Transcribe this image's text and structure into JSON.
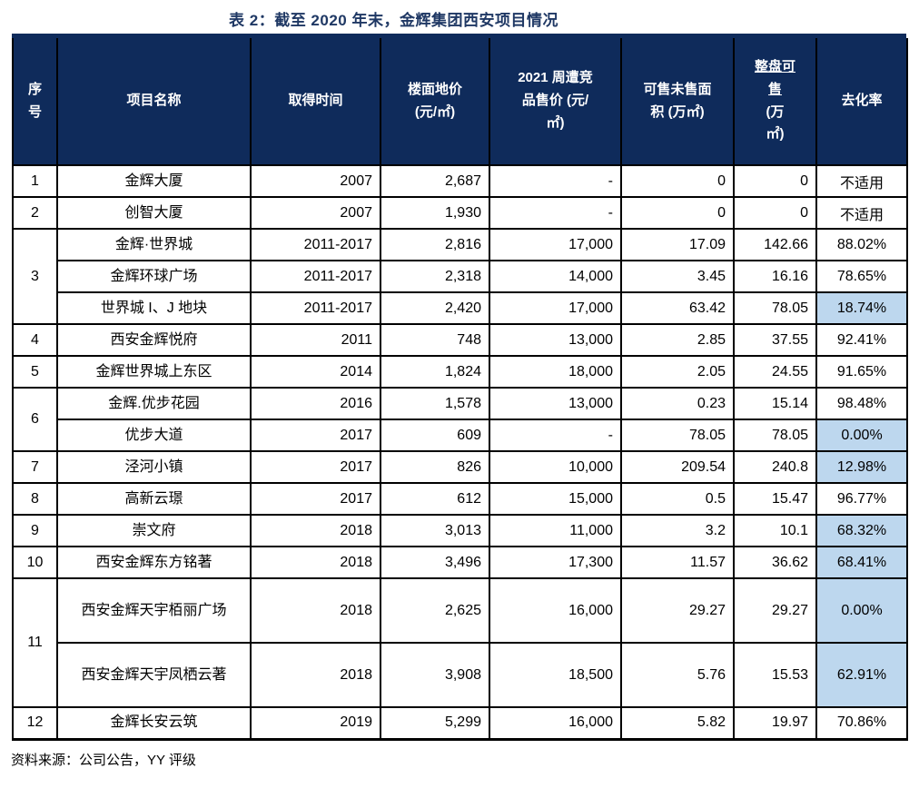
{
  "title": "表 2：截至 2020 年末，金辉集团西安项目情况",
  "source_note": "资料来源：公司公告，YY 评级",
  "colors": {
    "header_bg": "#0f2b5b",
    "title_color": "#1f3864",
    "highlight": "#bdd7ee",
    "rule": "#0f2b5b",
    "border": "#000000"
  },
  "header": {
    "seq": "序\n号",
    "name": "项目名称",
    "time": "取得时间",
    "floor_price": "楼面地价\n(元/㎡)",
    "comp_price": "2021 周遭竞\n品售价 (元/\n㎡)",
    "unsold_area": "可售未售面\n积 (万㎡)",
    "total_salable_underlined": "整盘可\n售",
    "total_salable_rest": "(万\n㎡)",
    "rate": "去化率"
  },
  "rows": [
    {
      "no": "1",
      "name": "金辉大厦",
      "time": "2007",
      "floor_price": "2,687",
      "comp_price": "-",
      "unsold_area": "0",
      "total_salable": "0",
      "rate": "不适用"
    },
    {
      "no": "2",
      "name": "创智大厦",
      "time": "2007",
      "floor_price": "1,930",
      "comp_price": "-",
      "unsold_area": "0",
      "total_salable": "0",
      "rate": "不适用"
    },
    {
      "no": "3",
      "name": "金辉·世界城",
      "time": "2011-2017",
      "floor_price": "2,816",
      "comp_price": "17,000",
      "unsold_area": "17.09",
      "total_salable": "142.66",
      "rate": "88.02%"
    },
    {
      "name": "金辉环球广场",
      "time": "2011-2017",
      "floor_price": "2,318",
      "comp_price": "14,000",
      "unsold_area": "3.45",
      "total_salable": "16.16",
      "rate": "78.65%"
    },
    {
      "name": "世界城 I、J 地块",
      "time": "2011-2017",
      "floor_price": "2,420",
      "comp_price": "17,000",
      "unsold_area": "63.42",
      "total_salable": "78.05",
      "rate": "18.74%",
      "highlight": true
    },
    {
      "no": "4",
      "name": "西安金辉悦府",
      "time": "2011",
      "floor_price": "748",
      "comp_price": "13,000",
      "unsold_area": "2.85",
      "total_salable": "37.55",
      "rate": "92.41%"
    },
    {
      "no": "5",
      "name": "金辉世界城上东区",
      "time": "2014",
      "floor_price": "1,824",
      "comp_price": "18,000",
      "unsold_area": "2.05",
      "total_salable": "24.55",
      "rate": "91.65%"
    },
    {
      "no": "6",
      "name": "金辉.优步花园",
      "time": "2016",
      "floor_price": "1,578",
      "comp_price": "13,000",
      "unsold_area": "0.23",
      "total_salable": "15.14",
      "rate": "98.48%"
    },
    {
      "name": "优步大道",
      "time": "2017",
      "floor_price": "609",
      "comp_price": "-",
      "unsold_area": "78.05",
      "total_salable": "78.05",
      "rate": "0.00%",
      "highlight": true
    },
    {
      "no": "7",
      "name": "泾河小镇",
      "time": "2017",
      "floor_price": "826",
      "comp_price": "10,000",
      "unsold_area": "209.54",
      "total_salable": "240.8",
      "rate": "12.98%",
      "highlight": true
    },
    {
      "no": "8",
      "name": "高新云璟",
      "time": "2017",
      "floor_price": "612",
      "comp_price": "15,000",
      "unsold_area": "0.5",
      "total_salable": "15.47",
      "rate": "96.77%"
    },
    {
      "no": "9",
      "name": "崇文府",
      "time": "2018",
      "floor_price": "3,013",
      "comp_price": "11,000",
      "unsold_area": "3.2",
      "total_salable": "10.1",
      "rate": "68.32%",
      "highlight": true
    },
    {
      "no": "10",
      "name": "西安金辉东方铭著",
      "time": "2018",
      "floor_price": "3,496",
      "comp_price": "17,300",
      "unsold_area": "11.57",
      "total_salable": "36.62",
      "rate": "68.41%",
      "highlight": true
    },
    {
      "no": "11",
      "name": "西安金辉天宇栢丽广场",
      "time": "2018",
      "floor_price": "2,625",
      "comp_price": "16,000",
      "unsold_area": "29.27",
      "total_salable": "29.27",
      "rate": "0.00%",
      "highlight": true
    },
    {
      "name": "西安金辉天宇凤栖云著",
      "time": "2018",
      "floor_price": "3,908",
      "comp_price": "18,500",
      "unsold_area": "5.76",
      "total_salable": "15.53",
      "rate": "62.91%",
      "highlight": true
    },
    {
      "no": "12",
      "name": "金辉长安云筑",
      "time": "2019",
      "floor_price": "5,299",
      "comp_price": "16,000",
      "unsold_area": "5.82",
      "total_salable": "19.97",
      "rate": "70.86%"
    }
  ]
}
